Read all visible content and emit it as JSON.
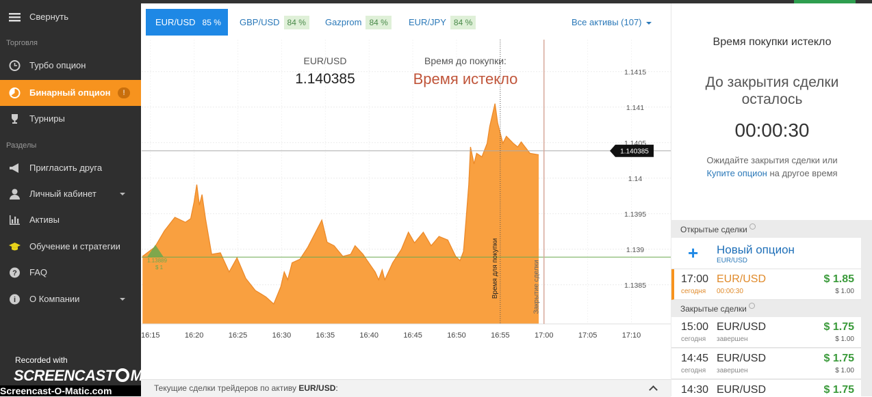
{
  "sidebar": {
    "collapse": "Свернуть",
    "sections": [
      {
        "title": "Торговля",
        "items": [
          {
            "label": "Турбо опцион"
          },
          {
            "label": "Бинарный опцион",
            "badge": "!"
          },
          {
            "label": "Турниры"
          }
        ]
      },
      {
        "title": "Разделы",
        "items": [
          {
            "label": "Пригласить друга"
          },
          {
            "label": "Личный кабинет"
          },
          {
            "label": "Активы"
          },
          {
            "label": "Обучение и стратегии"
          },
          {
            "label": "FAQ"
          },
          {
            "label": "О Компании"
          }
        ]
      }
    ]
  },
  "tabs": {
    "assets": [
      {
        "name": "EUR/USD",
        "percent": "85 %"
      },
      {
        "name": "GBP/USD",
        "percent": "84 %"
      },
      {
        "name": "Gazprom",
        "percent": "84 %"
      },
      {
        "name": "EUR/JPY",
        "percent": "84 %"
      }
    ],
    "all_assets": "Все активы (107)"
  },
  "chart": {
    "type": "area",
    "asset": "EUR/USD",
    "countdown_label": "Время до покупки:",
    "countdown": "Время истекло",
    "color": "#f9a040",
    "line_color": "#ec8a2a",
    "x": [
      974.1,
      975.5,
      976.6,
      977.8,
      979.0,
      979.6,
      980.0,
      980.3,
      980.6,
      980.9,
      981.3,
      982.0,
      983.0,
      984.0,
      984.9,
      985.9,
      987.0,
      988.2,
      989.1,
      989.9,
      990.3,
      990.7,
      991.2,
      992.1,
      993.0,
      993.8,
      994.6,
      995.2,
      996.0,
      997.0,
      997.9,
      998.4,
      999.3,
      999.8,
      1000.7,
      1001.1,
      1001.5,
      1001.8,
      1002.7,
      1003.7,
      1004.5,
      1005.2,
      1006.2,
      1007.1,
      1008.0,
      1009.0,
      1009.9,
      1010.4,
      1010.8,
      1011.1,
      1011.4,
      1011.6,
      1012.0,
      1012.3,
      1012.9,
      1013.5,
      1013.8,
      1014.4,
      1014.7,
      1015.3,
      1015.7,
      1016.5,
      1017.0,
      1017.4,
      1018.4,
      1019.4
    ],
    "values": [
      1.1389,
      1.13903,
      1.13926,
      1.13945,
      1.13938,
      1.13943,
      1.13967,
      1.13991,
      1.13962,
      1.13977,
      1.13943,
      1.13893,
      1.13895,
      1.13868,
      1.13888,
      1.13859,
      1.13842,
      1.13833,
      1.13823,
      1.13847,
      1.13868,
      1.13857,
      1.13881,
      1.13886,
      1.13903,
      1.13922,
      1.13941,
      1.1391,
      1.13905,
      1.1389,
      1.13893,
      1.13905,
      1.13893,
      1.13884,
      1.13868,
      1.13857,
      1.13871,
      1.13857,
      1.13881,
      1.139,
      1.13924,
      1.13909,
      1.13924,
      1.13905,
      1.13918,
      1.13913,
      1.1389,
      1.13884,
      1.13897,
      1.13943,
      1.13991,
      1.14044,
      1.1402,
      1.14035,
      1.1403,
      1.14049,
      1.14073,
      1.14105,
      1.14078,
      1.14049,
      1.14059,
      1.14049,
      1.14044,
      1.14051,
      1.14035,
      1.14033
    ],
    "xlim": [
      974,
      1034.5
    ],
    "xticks": [
      {
        "value": 975,
        "label": "16:15"
      },
      {
        "value": 980,
        "label": "16:20"
      },
      {
        "value": 985,
        "label": "16:25"
      },
      {
        "value": 990,
        "label": "16:30"
      },
      {
        "value": 995,
        "label": "16:35"
      },
      {
        "value": 1000,
        "label": "16:40"
      },
      {
        "value": 1005,
        "label": "16:45"
      },
      {
        "value": 1010,
        "label": "16:50"
      },
      {
        "value": 1015,
        "label": "16:55"
      },
      {
        "value": 1020,
        "label": "17:00"
      },
      {
        "value": 1025,
        "label": "17:05"
      },
      {
        "value": 1030,
        "label": "17:10"
      }
    ],
    "ylim": [
      1.13795,
      1.14195
    ],
    "yticks": [
      1.1385,
      1.139,
      1.1395,
      1.14,
      1.1405,
      1.141,
      1.1415
    ],
    "grid": true,
    "current_price": {
      "value": 1.140385,
      "label": "1.140385"
    },
    "entry": {
      "value": 1.13889,
      "label": "1.13889",
      "stake": "$ 1"
    },
    "buy_deadline": {
      "x": 1015,
      "label": "Время для покупки"
    },
    "close": {
      "x": 1020,
      "label": "Закрытие сделки"
    }
  },
  "status_panel": {
    "title": "Время покупки истекло",
    "remaining_line1": "До закрытия сделки",
    "remaining_line2": "осталось",
    "timer": "00:00:30",
    "wait_text": "Ожидайте закрытия сделки или",
    "link": "Купите опцион",
    "link_tail": "на другое время"
  },
  "open_deals": {
    "title": "Открытые сделки",
    "new_option": "Новый опцион",
    "new_option_asset": "EUR/USD",
    "rows": [
      {
        "time": "17:00",
        "day": "сегодня",
        "asset": "EUR/USD",
        "status": "00:00:30",
        "payout": "$ 1.85",
        "stake": "$ 1.00"
      }
    ]
  },
  "closed_deals": {
    "title": "Закрытые сделки",
    "rows": [
      {
        "time": "15:00",
        "day": "сегодня",
        "asset": "EUR/USD",
        "status": "завершен",
        "payout": "$ 1.75",
        "stake": "$ 1.00"
      },
      {
        "time": "14:45",
        "day": "сегодня",
        "asset": "EUR/USD",
        "status": "завершен",
        "payout": "$ 1.75",
        "stake": "$ 1.00"
      },
      {
        "time": "14:30",
        "asset": "EUR/USD",
        "payout": "$ 1.75"
      }
    ]
  },
  "footer_bar": {
    "text": "Текущие сделки трейдеров по активу",
    "asset": "EUR/USD",
    "colon": ":"
  },
  "watermark": {
    "recorded": "Recorded with",
    "logo_start": "SCREENCAST",
    "logo_end": "MATIC",
    "url": "Screencast-O-Matic.com"
  }
}
